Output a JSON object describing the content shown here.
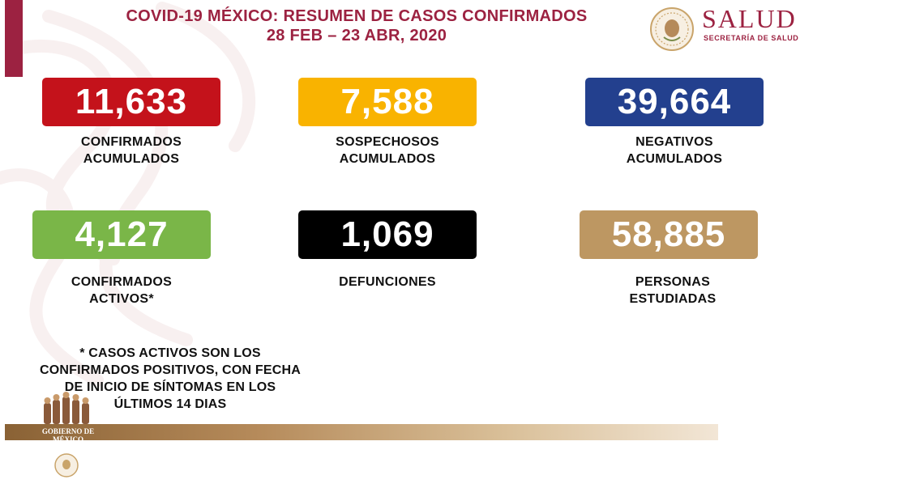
{
  "header": {
    "title_line1": "COVID-19 MÉXICO: RESUMEN DE CASOS CONFIRMADOS",
    "title_line2": "28 FEB – 23 ABR, 2020"
  },
  "brand": {
    "name": "SALUD",
    "subtitle": "SECRETARÍA DE SALUD"
  },
  "stats": [
    {
      "value": "11,633",
      "label_line1": "CONFIRMADOS",
      "label_line2": "ACUMULADOS",
      "color": "#c4121b"
    },
    {
      "value": "7,588",
      "label_line1": "SOSPECHOSOS",
      "label_line2": "ACUMULADOS",
      "color": "#f9b300"
    },
    {
      "value": "39,664",
      "label_line1": "NEGATIVOS",
      "label_line2": "ACUMULADOS",
      "color": "#23408e"
    },
    {
      "value": "4,127",
      "label_line1": "CONFIRMADOS",
      "label_line2": "ACTIVOS*",
      "color": "#7ab648"
    },
    {
      "value": "1,069",
      "label_line1": "DEFUNCIONES",
      "label_line2": "",
      "color": "#000000"
    },
    {
      "value": "58,885",
      "label_line1": "PERSONAS",
      "label_line2": "ESTUDIADAS",
      "color": "#bd9762"
    }
  ],
  "footnote": {
    "line1": "* CASOS ACTIVOS SON LOS",
    "line2": "CONFIRMADOS POSITIVOS, CON FECHA",
    "line3": "DE INICIO DE SÍNTOMAS EN LOS",
    "line4": "ÚLTIMOS 14 DIAS"
  },
  "footer": {
    "gob_line1": "GOBIERNO DE",
    "gob_line2": "MÉXICO"
  },
  "colors": {
    "accent": "#9c2241",
    "footer_band": "#b58a5a"
  },
  "icons": [
    "mexico-seal-icon",
    "gobierno-figures-icon"
  ]
}
